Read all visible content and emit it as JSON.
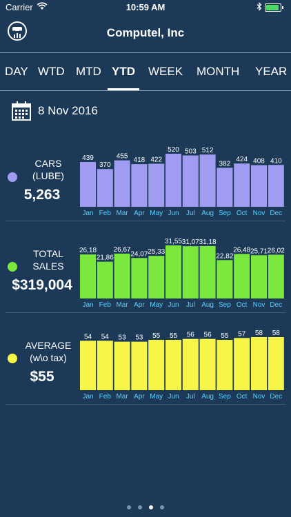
{
  "status_bar": {
    "carrier": "Carrier",
    "time": "10:59 AM",
    "battery_level": 0.95
  },
  "header": {
    "title": "Computel, Inc"
  },
  "tabs": [
    {
      "label": "DAY"
    },
    {
      "label": "WTD"
    },
    {
      "label": "MTD"
    },
    {
      "label": "YTD",
      "active": true
    },
    {
      "label": "WEEK"
    },
    {
      "label": "MONTH"
    },
    {
      "label": "YEAR"
    }
  ],
  "date": {
    "text": "8 Nov 2016"
  },
  "panels": [
    {
      "label_line1": "CARS",
      "label_line2": "(LUBE)",
      "total": "5,263",
      "color": "#a09cf2"
    },
    {
      "label_line1": "TOTAL",
      "label_line2": "SALES",
      "total": "$319,004",
      "color": "#7be83d"
    },
    {
      "label_line1": "AVERAGE",
      "label_line2": "(w\\o tax)",
      "total": "$55",
      "color": "#f7f547"
    }
  ],
  "chart_data": [
    {
      "type": "bar",
      "categories": [
        "Jan",
        "Feb",
        "Mar",
        "Apr",
        "May",
        "Jun",
        "Jul",
        "Aug",
        "Sep",
        "Oct",
        "Nov",
        "Dec"
      ],
      "values": [
        439,
        370,
        455,
        418,
        422,
        520,
        503,
        512,
        382,
        424,
        408,
        410
      ],
      "labels": [
        "439",
        "370",
        "455",
        "418",
        "422",
        "520",
        "503",
        "512",
        "382",
        "424",
        "408",
        "410"
      ],
      "color": "#a09cf2",
      "ylim": [
        0,
        520
      ]
    },
    {
      "type": "bar",
      "categories": [
        "Jan",
        "Feb",
        "Mar",
        "Apr",
        "May",
        "Jun",
        "Jul",
        "Aug",
        "Sep",
        "Oct",
        "Nov",
        "Dec"
      ],
      "values": [
        26180,
        21860,
        26670,
        24070,
        25330,
        31550,
        31070,
        31180,
        22820,
        26480,
        25710,
        26020
      ],
      "labels": [
        "26,18",
        "21,86",
        "26,67",
        "24,07",
        "25,33",
        "31,55",
        "31,07",
        "31,18",
        "22,82",
        "26,48",
        "25,71",
        "26,02"
      ],
      "color": "#7be83d",
      "ylim": [
        0,
        31550
      ]
    },
    {
      "type": "bar",
      "categories": [
        "Jan",
        "Feb",
        "Mar",
        "Apr",
        "May",
        "Jun",
        "Jul",
        "Aug",
        "Sep",
        "Oct",
        "Nov",
        "Dec"
      ],
      "values": [
        54,
        54,
        53,
        53,
        55,
        55,
        56,
        56,
        55,
        57,
        58,
        58
      ],
      "labels": [
        "54",
        "54",
        "53",
        "53",
        "55",
        "55",
        "56",
        "56",
        "55",
        "57",
        "58",
        "58"
      ],
      "color": "#f7f547",
      "ylim": [
        0,
        58
      ]
    }
  ],
  "pager": {
    "count": 4,
    "active_index": 2
  }
}
